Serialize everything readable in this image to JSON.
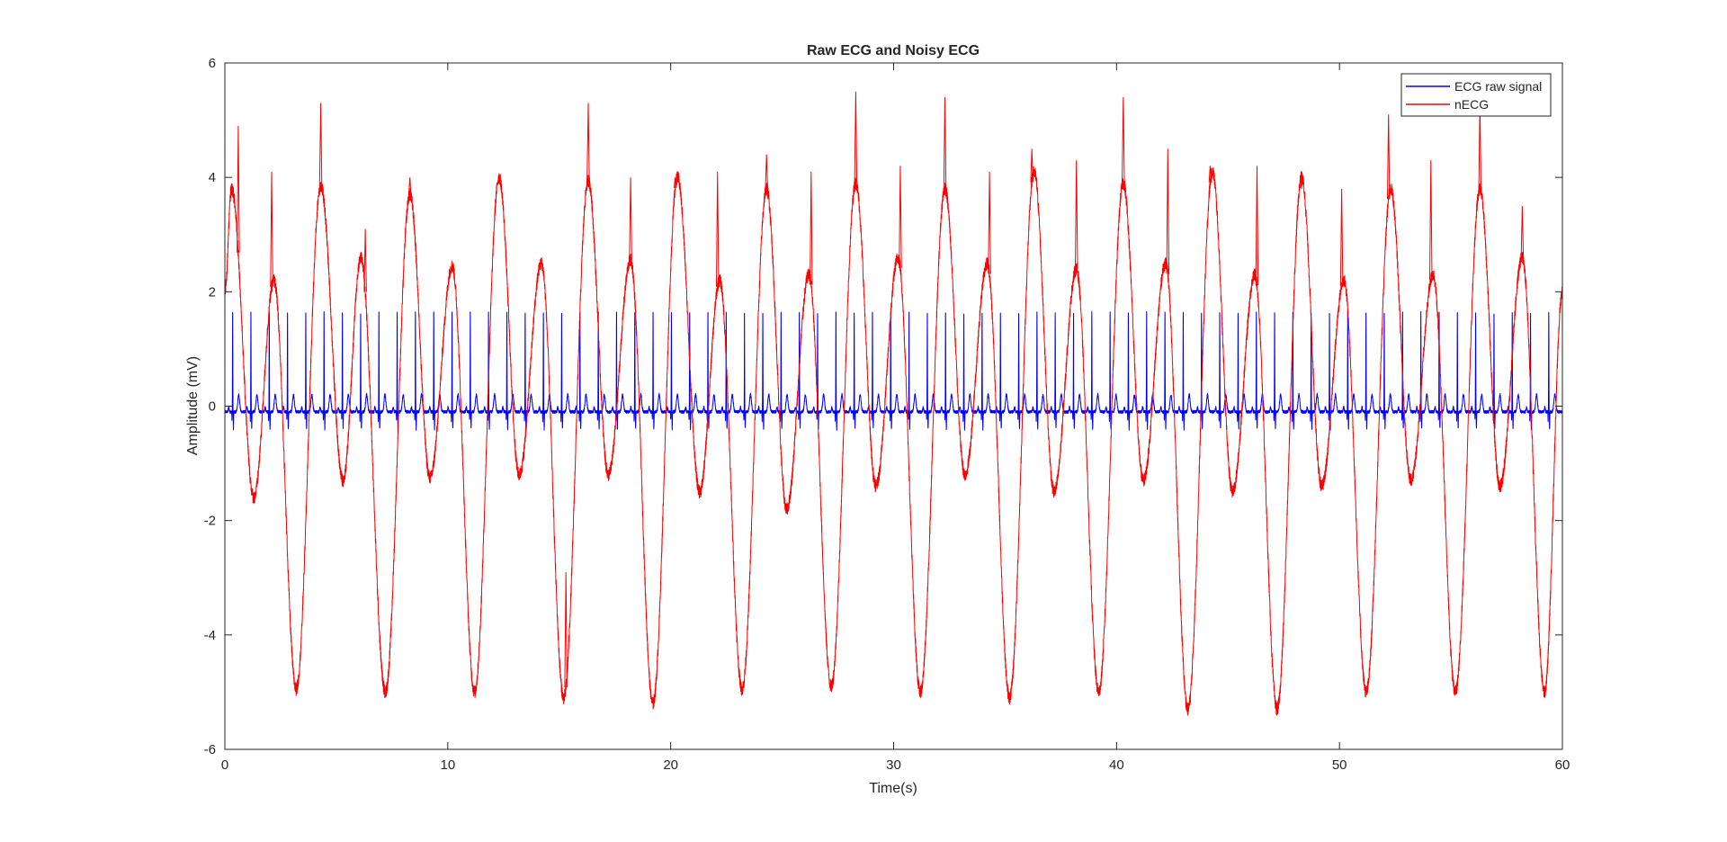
{
  "figure": {
    "background": "#ffffff"
  },
  "chart_data": {
    "type": "line",
    "title": "Raw ECG and Noisy ECG",
    "xlabel": "Time(s)",
    "ylabel": "Amplitude (mV)",
    "xlim": [
      0,
      60
    ],
    "ylim": [
      -6,
      6
    ],
    "xticks": [
      0,
      10,
      20,
      30,
      40,
      50,
      60
    ],
    "yticks": [
      -6,
      -4,
      -2,
      0,
      2,
      4,
      6
    ],
    "grid": false,
    "legend_position": "top-right",
    "series": [
      {
        "name": "ECG raw signal",
        "color": "#0000ff",
        "baseline": -0.1,
        "beat_period_s": 0.82,
        "r_peak": 1.7,
        "s_trough": -0.5,
        "t_wave": 0.2
      },
      {
        "name": "nECG",
        "color": "#ff0000",
        "peaks": [
          [
            0.3,
            3.8
          ],
          [
            1.3,
            -1.6
          ],
          [
            2.2,
            2.2
          ],
          [
            3.2,
            -4.95
          ],
          [
            4.3,
            3.85
          ],
          [
            5.3,
            -1.3
          ],
          [
            6.1,
            2.6
          ],
          [
            7.2,
            -5.0
          ],
          [
            8.3,
            3.7
          ],
          [
            9.2,
            -1.25
          ],
          [
            10.2,
            2.45
          ],
          [
            11.2,
            -5.0
          ],
          [
            12.3,
            4.0
          ],
          [
            13.2,
            -1.2
          ],
          [
            14.2,
            2.5
          ],
          [
            15.2,
            -5.1
          ],
          [
            16.3,
            3.95
          ],
          [
            17.2,
            -1.2
          ],
          [
            18.2,
            2.55
          ],
          [
            19.2,
            -5.2
          ],
          [
            20.3,
            4.0
          ],
          [
            21.3,
            -1.5
          ],
          [
            22.2,
            2.2
          ],
          [
            23.2,
            -4.95
          ],
          [
            24.3,
            3.8
          ],
          [
            25.2,
            -1.8
          ],
          [
            26.2,
            2.3
          ],
          [
            27.2,
            -4.9
          ],
          [
            28.3,
            3.9
          ],
          [
            29.2,
            -1.4
          ],
          [
            30.2,
            2.6
          ],
          [
            31.2,
            -5.0
          ],
          [
            32.3,
            3.8
          ],
          [
            33.2,
            -1.2
          ],
          [
            34.2,
            2.5
          ],
          [
            35.2,
            -5.1
          ],
          [
            36.3,
            4.1
          ],
          [
            37.2,
            -1.5
          ],
          [
            38.2,
            2.4
          ],
          [
            39.2,
            -5.0
          ],
          [
            40.3,
            3.9
          ],
          [
            41.2,
            -1.3
          ],
          [
            42.2,
            2.5
          ],
          [
            43.2,
            -5.3
          ],
          [
            44.3,
            4.1
          ],
          [
            45.2,
            -1.5
          ],
          [
            46.2,
            2.3
          ],
          [
            47.2,
            -5.3
          ],
          [
            48.3,
            4.0
          ],
          [
            49.2,
            -1.4
          ],
          [
            50.2,
            2.2
          ],
          [
            51.2,
            -5.0
          ],
          [
            52.3,
            3.8
          ],
          [
            53.2,
            -1.3
          ],
          [
            54.2,
            2.3
          ],
          [
            55.2,
            -5.0
          ],
          [
            56.3,
            3.8
          ],
          [
            57.2,
            -1.4
          ],
          [
            58.2,
            2.6
          ],
          [
            59.2,
            -5.0
          ],
          [
            60.0,
            2.0
          ]
        ],
        "spikes": [
          [
            0.6,
            4.9
          ],
          [
            2.1,
            4.1
          ],
          [
            4.3,
            5.3
          ],
          [
            6.3,
            3.1
          ],
          [
            8.3,
            4.0
          ],
          [
            12.3,
            4.0
          ],
          [
            15.3,
            -2.9
          ],
          [
            16.3,
            5.3
          ],
          [
            18.2,
            4.0
          ],
          [
            20.2,
            4.0
          ],
          [
            22.1,
            4.1
          ],
          [
            24.3,
            4.4
          ],
          [
            26.3,
            4.1
          ],
          [
            28.3,
            5.5
          ],
          [
            30.3,
            4.2
          ],
          [
            32.3,
            5.4
          ],
          [
            34.3,
            4.1
          ],
          [
            36.2,
            4.5
          ],
          [
            38.2,
            4.3
          ],
          [
            40.3,
            5.4
          ],
          [
            42.3,
            4.5
          ],
          [
            44.2,
            4.2
          ],
          [
            46.3,
            4.2
          ],
          [
            48.3,
            3.8
          ],
          [
            50.1,
            3.8
          ],
          [
            52.2,
            5.1
          ],
          [
            54.1,
            4.3
          ],
          [
            56.3,
            5.3
          ],
          [
            58.2,
            3.5
          ]
        ]
      }
    ]
  }
}
